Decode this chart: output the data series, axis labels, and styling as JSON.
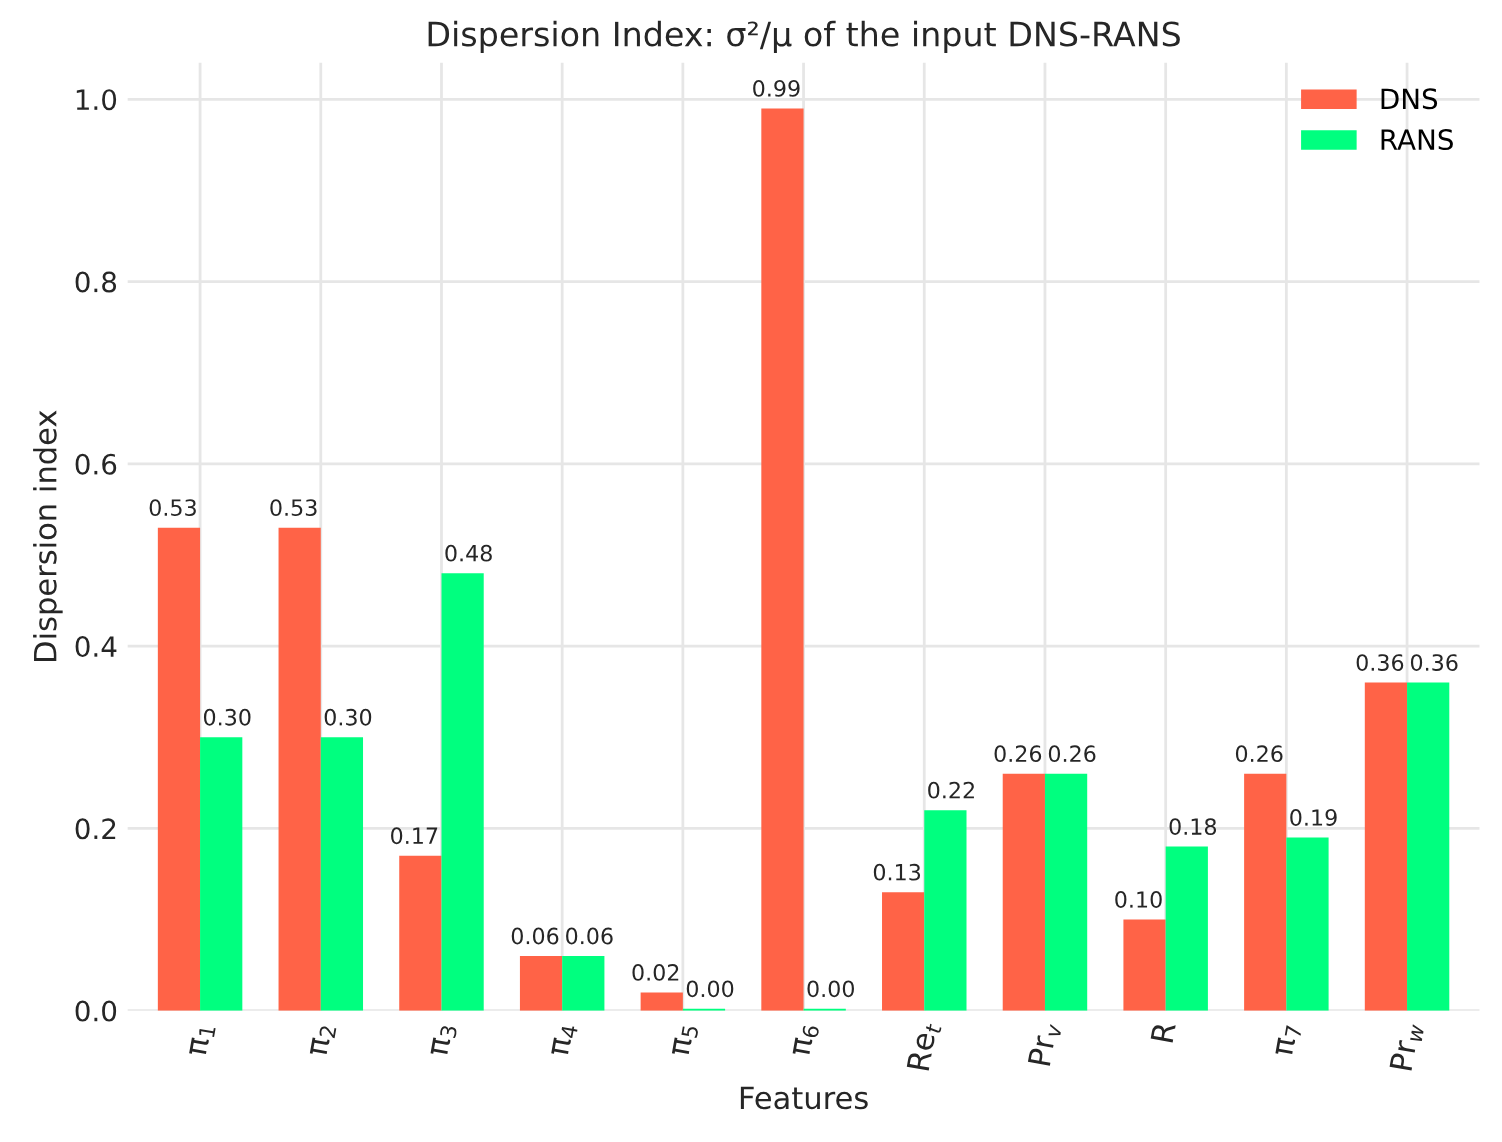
{
  "chart_data": {
    "type": "bar",
    "title": "Dispersion Index: σ²/μ of the input DNS-RANS",
    "xlabel": "Features",
    "ylabel": "Dispersion index",
    "categories": [
      "π$_{1}$",
      "π$_{2}$",
      "π$_{3}$",
      "π$_{4}$",
      "π$_{5}$",
      "π$_{6}$",
      "Re$_{t}$",
      "Pr$_{v}$",
      "R",
      "π$_{7}$",
      "Pr$_{w}$"
    ],
    "series": [
      {
        "name": "DNS",
        "color": "#ff6347",
        "values": [
          0.53,
          0.53,
          0.17,
          0.06,
          0.02,
          0.99,
          0.13,
          0.26,
          0.1,
          0.26,
          0.36
        ],
        "value_labels": [
          "0.53",
          "0.53",
          "0.17",
          "0.06",
          "0.02",
          "0.99",
          "0.13",
          "0.26",
          "0.10",
          "0.26",
          "0.36"
        ]
      },
      {
        "name": "RANS",
        "color": "#00ff7f",
        "values": [
          0.3,
          0.3,
          0.48,
          0.06,
          0.002,
          0.002,
          0.22,
          0.26,
          0.18,
          0.19,
          0.36
        ],
        "value_labels": [
          "0.30",
          "0.30",
          "0.48",
          "0.06",
          "0.00",
          "0.00",
          "0.22",
          "0.26",
          "0.18",
          "0.19",
          "0.36"
        ]
      }
    ],
    "ylim": [
      0,
      1.04
    ],
    "yticks": [
      {
        "value": 0,
        "label": "0.0"
      },
      {
        "value": 0.2,
        "label": "0.2"
      },
      {
        "value": 0.4,
        "label": "0.4"
      },
      {
        "value": 0.6,
        "label": "0.6"
      },
      {
        "value": 0.8,
        "label": "0.8"
      },
      {
        "value": 1.0,
        "label": "1.0"
      }
    ],
    "grid": true,
    "legend": "top right"
  }
}
